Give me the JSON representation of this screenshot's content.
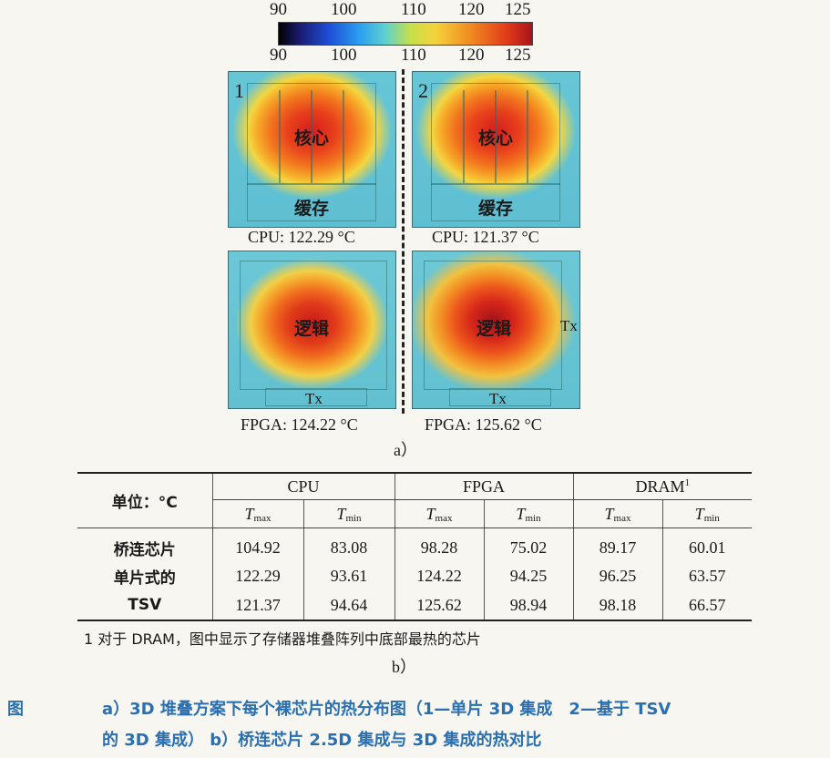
{
  "colorbar": {
    "ticks": [
      "90",
      "100",
      "110",
      "120",
      "125"
    ],
    "colors": [
      "#000000",
      "#1d4fd8",
      "#5fd0d0",
      "#f4d23a",
      "#e23a1a",
      "#a8141a"
    ]
  },
  "panels": {
    "cpu1": {
      "num": "1",
      "core": "核心",
      "cache": "缓存",
      "caption": "CPU: 122.29 °C"
    },
    "cpu2": {
      "num": "2",
      "core": "核心",
      "cache": "缓存",
      "caption": "CPU: 121.37 °C"
    },
    "fpga1": {
      "logic": "逻辑",
      "tx": "Tx",
      "caption": "FPGA: 124.22 °C"
    },
    "fpga2": {
      "logic": "逻辑",
      "tx_bottom": "Tx",
      "tx_right": "Tx",
      "caption": "FPGA: 125.62 °C"
    }
  },
  "label_a": "a）",
  "table": {
    "unit_label": "单位：°C",
    "groups": [
      "CPU",
      "FPGA",
      "DRAM"
    ],
    "dram_sup": "1",
    "sub_t": "T",
    "sub_max": "max",
    "sub_min": "min",
    "rows": [
      {
        "label": "桥连芯片",
        "values": [
          "104.92",
          "83.08",
          "98.28",
          "75.02",
          "89.17",
          "60.01"
        ]
      },
      {
        "label": "单片式的",
        "values": [
          "122.29",
          "93.61",
          "124.22",
          "94.25",
          "96.25",
          "63.57"
        ]
      },
      {
        "label": "TSV",
        "values": [
          "121.37",
          "94.64",
          "125.62",
          "98.94",
          "98.18",
          "66.57"
        ]
      }
    ],
    "footnote": "1 对于 DRAM，图中显示了存储器堆叠阵列中底部最热的芯片"
  },
  "label_b": "b）",
  "caption": {
    "fig": "图",
    "line1": "a）3D 堆叠方案下每个裸芯片的热分布图（1—单片 3D 集成　2—基于 TSV",
    "line2": "的 3D 集成）  b）桥连芯片 2.5D 集成与 3D 集成的热对比"
  }
}
